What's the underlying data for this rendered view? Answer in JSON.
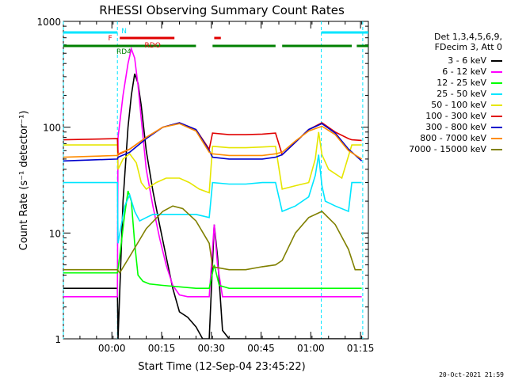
{
  "chart_data": {
    "type": "line",
    "title": "RHESSI Observing Summary Count Rates",
    "xlabel": "Start Time (12-Sep-04 23:45:22)",
    "ylabel": "Count Rate (s⁻¹ detector⁻¹)",
    "ylog": true,
    "ylim": [
      1,
      1000
    ],
    "xlim_minutes": [
      0,
      92
    ],
    "x_tick_labels": [
      "00:00",
      "00:15",
      "00:30",
      "00:45",
      "01:00",
      "01:15"
    ],
    "x_tick_minutes": [
      14.63,
      29.63,
      44.63,
      59.63,
      74.63,
      89.63
    ],
    "y_tick_labels": [
      "1",
      "10",
      "100",
      "1000"
    ],
    "y_tick_values": [
      1,
      10,
      100,
      1000
    ],
    "legend_header": [
      "Det 1,3,4,5,6,9,",
      "FDecim 3, Att 0"
    ],
    "legend_position": "right",
    "timestamp": "20-Oct-2021 21:59",
    "attenuator_boundaries_minutes": [
      0,
      16.3,
      77.8,
      90.3
    ],
    "flags": [
      {
        "label": "N",
        "color": "#00e5ff",
        "segments": [
          [
            0,
            16.3
          ],
          [
            77.8,
            92
          ]
        ]
      },
      {
        "label": "F",
        "color": "#e00000",
        "segments": [
          [
            17.0,
            33.5
          ],
          [
            45.5,
            47.5
          ]
        ]
      },
      {
        "label": "RDO",
        "color": "#e00000",
        "segments": []
      },
      {
        "label": "RD4",
        "color": "#008000",
        "segments": [
          [
            0,
            40.0
          ],
          [
            45.0,
            64.0
          ],
          [
            66.0,
            87.0
          ],
          [
            88.5,
            92
          ]
        ]
      }
    ],
    "series": [
      {
        "name": "3 - 6 keV",
        "color": "#000000",
        "x": [
          0,
          16.3,
          16.5,
          18.0,
          19.5,
          20.5,
          21.5,
          22.5,
          23.5,
          25.0,
          27.0,
          29.0,
          31.0,
          33.0,
          35.0,
          37.5,
          40.0,
          42.0,
          44.0,
          45.5,
          46.5,
          48.0,
          50.0,
          55.0,
          60.0,
          64.0,
          68.0,
          72.0,
          78.0,
          82.0,
          86.0,
          90.0
        ],
        "y": [
          3.0,
          3.0,
          1.0,
          20,
          100,
          200,
          320,
          260,
          160,
          60,
          25,
          12,
          6,
          3,
          1.8,
          1.6,
          1.3,
          1.0,
          1.0,
          12,
          6,
          1.2,
          1.0,
          1.0,
          1.0,
          1.0,
          1.0,
          1.0,
          1.0,
          1.0,
          1.0,
          1.0
        ]
      },
      {
        "name": "6 - 12 keV",
        "color": "#ff00ff",
        "x": [
          0,
          16.3,
          16.5,
          18.0,
          19.5,
          20.5,
          21.5,
          22.5,
          23.5,
          25.0,
          27.0,
          29.0,
          31.0,
          33.0,
          35.0,
          37.5,
          40.0,
          42.0,
          44.0,
          45.5,
          46.5,
          48.0,
          50.0,
          55.0,
          60.0,
          64.0,
          68.0,
          72.0,
          78.0,
          82.0,
          86.0,
          90.0
        ],
        "y": [
          2.5,
          2.5,
          80,
          200,
          400,
          550,
          450,
          250,
          120,
          40,
          18,
          9,
          5,
          3.2,
          2.6,
          2.5,
          2.5,
          2.5,
          2.5,
          12,
          5,
          2.5,
          2.5,
          2.5,
          2.5,
          2.5,
          2.5,
          2.5,
          2.5,
          2.5,
          2.5,
          2.5
        ]
      },
      {
        "name": "12 - 25 keV",
        "color": "#00ff00",
        "x": [
          0,
          16.3,
          17.0,
          18.5,
          19.5,
          20.5,
          21.5,
          22.5,
          24.0,
          26.0,
          30.0,
          35.0,
          40.0,
          44.0,
          45.5,
          47.0,
          50.0,
          55.0,
          60.0,
          64.0,
          68.0,
          72.0,
          76.0,
          80.0,
          84.0,
          88.0,
          90.0
        ],
        "y": [
          4.2,
          4.2,
          6,
          15,
          25,
          20,
          8,
          4,
          3.5,
          3.3,
          3.2,
          3.1,
          3.0,
          3.0,
          5,
          3.2,
          3.0,
          3.0,
          3.0,
          3.0,
          3.0,
          3.0,
          3.0,
          3.0,
          3.0,
          3.0,
          3.0
        ]
      },
      {
        "name": "25 - 50 keV",
        "color": "#00e5ff",
        "x": [
          0,
          16.3,
          16.5,
          18.5,
          20.0,
          21.5,
          23.0,
          25.0,
          27.0,
          30.0,
          35.0,
          40.0,
          44.0,
          45.0,
          50.0,
          55.0,
          60.0,
          64.0,
          66.0,
          70.0,
          74.0,
          76.0,
          77.0,
          78.0,
          79.0,
          82.0,
          86.0,
          87.0,
          90.0
        ],
        "y": [
          30,
          30,
          8,
          18,
          23,
          16,
          13,
          14,
          15,
          15,
          15,
          15,
          14,
          30,
          29,
          29,
          30,
          30,
          16,
          18,
          22,
          35,
          55,
          28,
          20,
          18,
          16,
          30,
          30
        ]
      },
      {
        "name": "50 - 100 keV",
        "color": "#e6e600",
        "x": [
          0,
          16.3,
          16.5,
          18.0,
          20.0,
          22.0,
          23.5,
          25.0,
          28.0,
          31.0,
          35.0,
          38.0,
          41.0,
          44.0,
          45.0,
          50.0,
          55.0,
          60.0,
          64.0,
          66.0,
          70.0,
          74.0,
          76.0,
          77.0,
          78.0,
          80.0,
          84.0,
          87.0,
          90.0
        ],
        "y": [
          68,
          68,
          40,
          50,
          56,
          46,
          30,
          26,
          30,
          33,
          33,
          30,
          26,
          24,
          66,
          64,
          64,
          65,
          66,
          26,
          28,
          30,
          50,
          90,
          55,
          40,
          33,
          68,
          68
        ]
      },
      {
        "name": "100 - 300 keV",
        "color": "#e00000",
        "x": [
          0,
          16.3,
          16.5,
          20.0,
          25.0,
          30.0,
          35.0,
          40.0,
          44.0,
          45.0,
          50.0,
          55.0,
          60.0,
          64.0,
          66.0,
          70.0,
          74.0,
          78.0,
          82.0,
          86.0,
          87.0,
          90.0
        ],
        "y": [
          76,
          78,
          55,
          62,
          80,
          100,
          110,
          95,
          62,
          88,
          85,
          85,
          86,
          88,
          55,
          72,
          95,
          110,
          90,
          78,
          76,
          75
        ]
      },
      {
        "name": "300 - 800 keV",
        "color": "#0000cc",
        "x": [
          0,
          16.3,
          16.5,
          20.0,
          25.0,
          30.0,
          35.0,
          40.0,
          44.0,
          45.0,
          50.0,
          55.0,
          60.0,
          64.0,
          66.0,
          70.0,
          74.0,
          78.0,
          82.0,
          86.0,
          90.0
        ],
        "y": [
          48,
          50,
          52,
          58,
          78,
          100,
          110,
          95,
          60,
          52,
          50,
          50,
          50,
          52,
          55,
          72,
          95,
          108,
          88,
          62,
          48
        ]
      },
      {
        "name": "800 - 7000 keV",
        "color": "#ff8c00",
        "x": [
          0,
          16.3,
          16.5,
          20.0,
          25.0,
          30.0,
          35.0,
          40.0,
          44.0,
          45.0,
          50.0,
          55.0,
          60.0,
          64.0,
          66.0,
          70.0,
          74.0,
          78.0,
          82.0,
          86.0,
          90.0
        ],
        "y": [
          52,
          54,
          56,
          62,
          80,
          100,
          108,
          92,
          58,
          56,
          54,
          54,
          54,
          56,
          58,
          74,
          92,
          102,
          85,
          60,
          50
        ]
      },
      {
        "name": "7000 - 15000 keV",
        "color": "#808000",
        "x": [
          0,
          16.3,
          17.0,
          20.0,
          25.0,
          30.0,
          33.0,
          36.0,
          40.0,
          44.0,
          45.0,
          50.0,
          55.0,
          60.0,
          64.0,
          66.0,
          70.0,
          74.0,
          78.0,
          82.0,
          86.0,
          88.0,
          90.0
        ],
        "y": [
          4.5,
          4.5,
          4.2,
          6,
          11,
          16,
          18,
          17,
          13,
          8,
          4.8,
          4.5,
          4.5,
          4.8,
          5,
          5.5,
          10,
          14,
          16,
          12,
          7,
          4.5,
          4.5
        ]
      }
    ]
  }
}
